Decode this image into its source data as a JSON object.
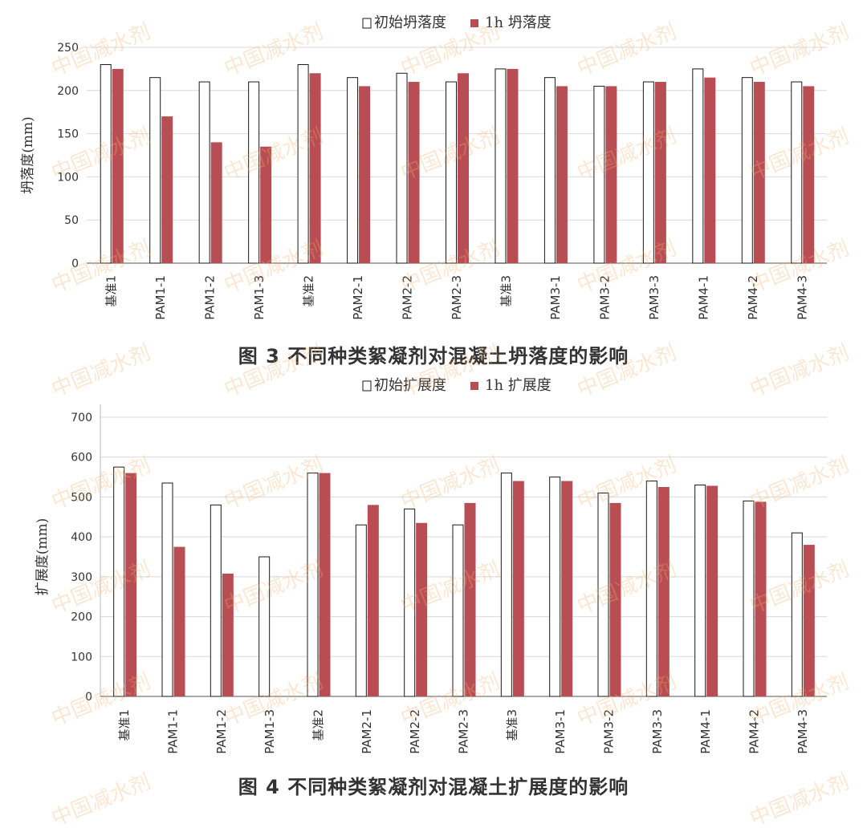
{
  "colors": {
    "initial_fill": "#ffffff",
    "initial_stroke": "#1a1a1a",
    "one_hour_fill": "#b84e54",
    "grid": "#d9d9d9",
    "axis": "#555555",
    "text": "#333333",
    "watermark": "#f5af6e"
  },
  "watermark": {
    "text": "中国减水剂"
  },
  "chart_data": [
    {
      "type": "bar",
      "caption": "图 3   不同种类絮凝剂对混凝土坍落度的影响",
      "ylabel": "坍落度(mm)",
      "ylim": [
        0,
        250
      ],
      "yticks": [
        0,
        50,
        100,
        150,
        200,
        250
      ],
      "grid": true,
      "legend_position": "top-center",
      "categories": [
        "基准1",
        "PAM1-1",
        "PAM1-2",
        "PAM1-3",
        "基准2",
        "PAM2-1",
        "PAM2-2",
        "PAM2-3",
        "基准3",
        "PAM3-1",
        "PAM3-2",
        "PAM3-3",
        "PAM4-1",
        "PAM4-2",
        "PAM4-3"
      ],
      "series": [
        {
          "name": "初始坍落度",
          "style": "outline",
          "values": [
            230,
            215,
            210,
            210,
            230,
            215,
            220,
            210,
            225,
            215,
            205,
            210,
            225,
            215,
            210
          ]
        },
        {
          "name": "1h 坍落度",
          "style": "filled",
          "values": [
            225,
            170,
            140,
            135,
            220,
            205,
            210,
            220,
            225,
            205,
            205,
            210,
            215,
            210,
            205
          ]
        }
      ]
    },
    {
      "type": "bar",
      "caption": "图 4   不同种类絮凝剂对混凝土扩展度的影响",
      "ylabel": "扩展度(mm)",
      "ylim": [
        0,
        700
      ],
      "yticks": [
        0,
        100,
        200,
        300,
        400,
        500,
        600,
        700
      ],
      "grid": true,
      "legend_position": "top-center",
      "categories": [
        "基准1",
        "PAM1-1",
        "PAM1-2",
        "PAM1-3",
        "基准2",
        "PAM2-1",
        "PAM2-2",
        "PAM2-3",
        "基准3",
        "PAM3-1",
        "PAM3-2",
        "PAM3-3",
        "PAM4-1",
        "PAM4-2",
        "PAM4-3"
      ],
      "series": [
        {
          "name": "初始扩展度",
          "style": "outline",
          "values": [
            575,
            535,
            480,
            350,
            560,
            430,
            470,
            430,
            560,
            550,
            510,
            540,
            530,
            490,
            410
          ]
        },
        {
          "name": "1h 扩展度",
          "style": "filled",
          "values": [
            560,
            375,
            308,
            0,
            560,
            480,
            435,
            485,
            540,
            540,
            485,
            525,
            528,
            488,
            380
          ]
        }
      ]
    }
  ]
}
